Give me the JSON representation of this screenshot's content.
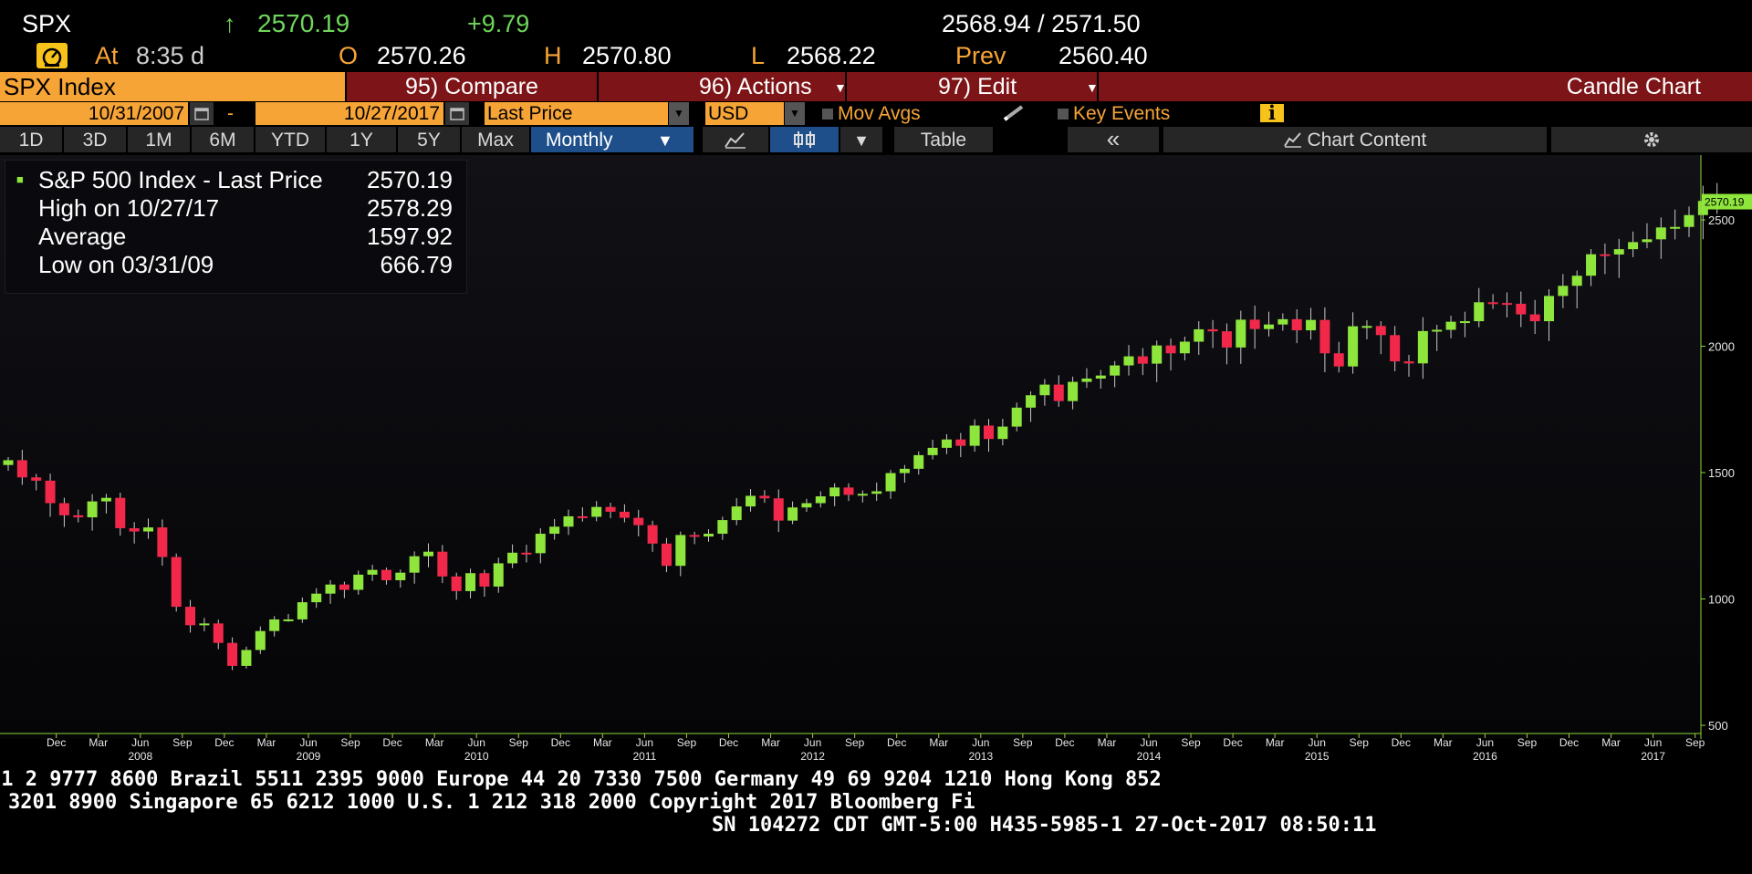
{
  "quote": {
    "ticker": "SPX",
    "arrow": "↑",
    "last": "2570.19",
    "change": "+9.79",
    "bid_ask": "2568.94 / 2571.50",
    "at_label": "At",
    "time": "8:35 d",
    "open_label": "O",
    "open": "2570.26",
    "high_label": "H",
    "high": "2570.80",
    "low_label": "L",
    "low": "2568.22",
    "prev_label": "Prev",
    "prev": "2560.40"
  },
  "toolbar": {
    "security": "SPX Index",
    "compare": "95) Compare",
    "actions": "96) Actions",
    "edit": "97) Edit",
    "chart_name": "Candle Chart"
  },
  "controls": {
    "start_date": "10/31/2007",
    "dash": "-",
    "end_date": "10/27/2017",
    "field": "Last Price",
    "currency": "USD",
    "mov_avgs": "Mov Avgs",
    "key_events": "Key Events",
    "info_icon": "i"
  },
  "tabs": {
    "items": [
      "1D",
      "3D",
      "1M",
      "6M",
      "YTD",
      "1Y",
      "5Y",
      "Max"
    ],
    "period": "Monthly",
    "table": "Table",
    "chart_content": "Chart Content",
    "collapse": "«"
  },
  "legend": {
    "title": "S&P 500 Index - Last Price",
    "title_value": "2570.19",
    "high_label": "High on 10/27/17",
    "high_value": "2578.29",
    "avg_label": "Average",
    "avg_value": "1597.92",
    "low_label": "Low on 03/31/09",
    "low_value": "666.79"
  },
  "colors": {
    "up": "#8ee53b",
    "down": "#f2284a",
    "axis": "#8fd43a",
    "accent": "#f7a436",
    "bar": "#7d1417"
  },
  "chart_data": {
    "type": "candlestick",
    "period": "Monthly",
    "ylim": [
      500,
      2700
    ],
    "yticks": [
      500,
      1000,
      1500,
      2000,
      2500
    ],
    "last_label": "2570.19",
    "start": "2007-10",
    "month_labels": [
      "Dec",
      "Mar",
      "Jun",
      "Sep"
    ],
    "year_labels": [
      "2008",
      "2009",
      "2010",
      "2011",
      "2012",
      "2013",
      "2014",
      "2015",
      "2016",
      "2017"
    ],
    "close": [
      1549,
      1481,
      1468,
      1379,
      1331,
      1323,
      1386,
      1400,
      1280,
      1267,
      1283,
      1166,
      969,
      896,
      903,
      826,
      735,
      798,
      873,
      919,
      919,
      987,
      1021,
      1057,
      1036,
      1096,
      1115,
      1074,
      1104,
      1169,
      1187,
      1089,
      1031,
      1102,
      1049,
      1141,
      1183,
      1181,
      1258,
      1286,
      1327,
      1325,
      1364,
      1345,
      1321,
      1292,
      1219,
      1131,
      1253,
      1247,
      1258,
      1312,
      1366,
      1408,
      1398,
      1310,
      1362,
      1379,
      1406,
      1441,
      1412,
      1416,
      1426,
      1498,
      1515,
      1569,
      1598,
      1631,
      1606,
      1686,
      1633,
      1682,
      1757,
      1806,
      1848,
      1783,
      1859,
      1872,
      1884,
      1924,
      1960,
      1931,
      2003,
      1972,
      2018,
      2067,
      2059,
      1995,
      2105,
      2068,
      2086,
      2107,
      2063,
      2104,
      1972,
      1920,
      2079,
      2080,
      2044,
      1940,
      1932,
      2060,
      2065,
      2097,
      2099,
      2174,
      2171,
      2168,
      2126,
      2099,
      2199,
      2239,
      2279,
      2364,
      2363,
      2384,
      2412,
      2423,
      2470,
      2472,
      2519,
      2575,
      2570.19
    ],
    "series": [
      {
        "name": "S&P 500 Index - Last Price"
      }
    ]
  }
}
